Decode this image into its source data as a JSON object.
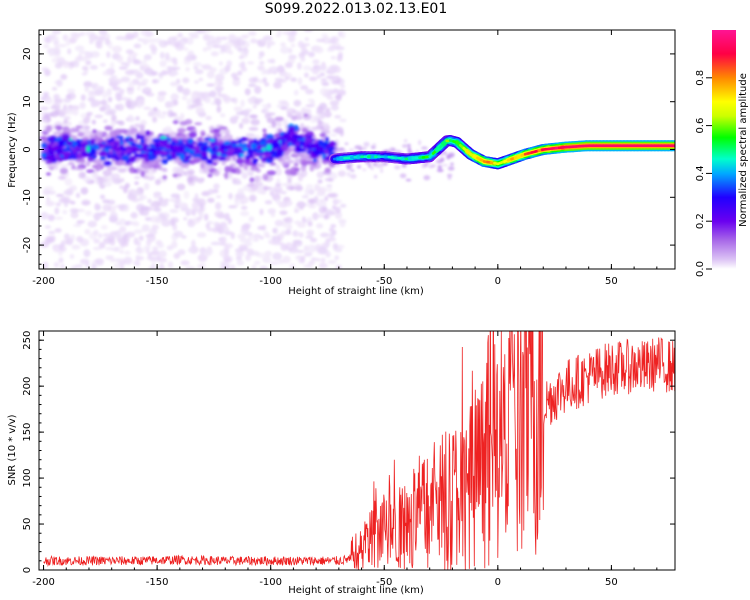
{
  "page": {
    "title": "S099.2022.013.02.13.E01"
  },
  "chart_data": [
    {
      "type": "heatmap",
      "title": "S099.2022.013.02.13.E01",
      "xlabel": "Height of straight line (km)",
      "ylabel": "Frequency (Hz)",
      "xlim": [
        -202,
        78
      ],
      "ylim": [
        -25,
        25
      ],
      "x_ticks": [
        -200,
        -150,
        -100,
        -50,
        0,
        50
      ],
      "y_ticks": [
        -20,
        -10,
        0,
        10,
        20
      ],
      "colorbar": {
        "label": "Normalized spectral amplitude",
        "range": [
          0,
          1
        ],
        "ticks": [
          0.0,
          0.2,
          0.4,
          0.6,
          0.8
        ],
        "colors": [
          "#ffffff",
          "#dcc3f5",
          "#a868e8",
          "#6a00f0",
          "#2000ff",
          "#00aaff",
          "#00ffcc",
          "#00ff00",
          "#ccff00",
          "#ffff00",
          "#ff8800",
          "#ff0044",
          "#ff1493"
        ]
      },
      "ridge": {
        "x": [
          -72,
          -60,
          -50,
          -40,
          -30,
          -22,
          -18,
          -12,
          -6,
          0,
          6,
          12,
          20,
          30,
          40,
          60,
          78
        ],
        "freq": [
          -2,
          -1.5,
          -1.5,
          -2,
          -1.5,
          2,
          1.5,
          -1,
          -2.5,
          -3,
          -2,
          -1,
          0,
          0.5,
          0.8,
          0.8,
          0.8
        ],
        "amplitude": [
          0.45,
          0.5,
          0.45,
          0.5,
          0.55,
          0.6,
          0.65,
          0.75,
          0.85,
          0.7,
          0.8,
          0.85,
          0.9,
          0.95,
          0.95,
          0.95,
          0.95
        ]
      },
      "noise_region": {
        "x": [
          -200,
          -72
        ],
        "freq_band": [
          -5,
          5
        ],
        "amplitude": [
          0.2,
          0.4
        ]
      }
    },
    {
      "type": "line",
      "xlabel": "Height of straight line (km)",
      "ylabel": "SNR (10 * v/v)",
      "xlim": [
        -202,
        78
      ],
      "ylim": [
        0,
        260
      ],
      "x_ticks": [
        -200,
        -150,
        -100,
        -50,
        0,
        50
      ],
      "y_ticks": [
        0,
        50,
        100,
        150,
        200,
        250
      ],
      "color": "#ee2222",
      "series": [
        {
          "x": [
            -200,
            -180,
            -160,
            -140,
            -120,
            -100,
            -80,
            -70,
            -65,
            -60,
            -55,
            -50,
            -45,
            -40,
            -35,
            -30,
            -25,
            -20,
            -15,
            -10,
            -5,
            0,
            5,
            10,
            15,
            20,
            25,
            30,
            35,
            40,
            45,
            50,
            55,
            60,
            65,
            70,
            75,
            78
          ],
          "values": [
            10,
            10,
            10,
            11,
            10,
            10,
            10,
            10,
            12,
            22,
            40,
            55,
            45,
            50,
            60,
            68,
            75,
            80,
            85,
            95,
            115,
            130,
            140,
            155,
            170,
            180,
            190,
            200,
            205,
            210,
            215,
            220,
            220,
            222,
            220,
            225,
            222,
            220
          ]
        }
      ]
    }
  ]
}
